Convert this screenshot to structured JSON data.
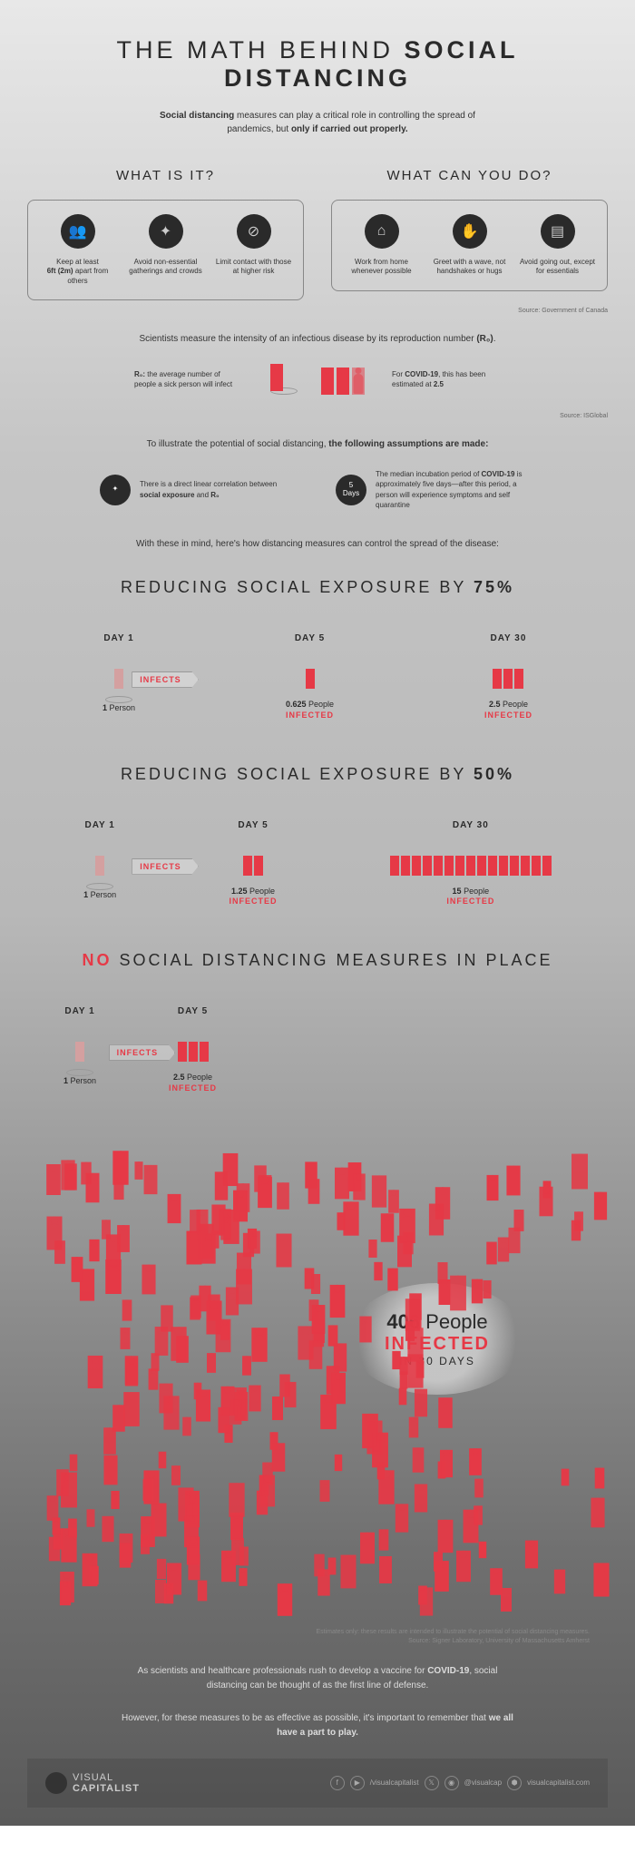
{
  "title_pre": "THE MATH BEHIND ",
  "title_bold": "SOCIAL DISTANCING",
  "subtitle_pre": "Social distancing",
  "subtitle_mid": " measures can play a critical role in controlling the spread of pandemics, but ",
  "subtitle_bold": "only if carried out properly.",
  "whatisit": {
    "heading": "WHAT IS IT?",
    "items": [
      {
        "icon": "👥",
        "text_pre": "Keep at least",
        "text_bold": "6ft (2m)",
        "text_post": " apart from others"
      },
      {
        "icon": "✦",
        "text_pre": "Avoid non-essential gatherings and crowds",
        "text_bold": "",
        "text_post": ""
      },
      {
        "icon": "⊘",
        "text_pre": "Limit contact with those at higher risk",
        "text_bold": "",
        "text_post": ""
      }
    ]
  },
  "whatcanyoudo": {
    "heading": "WHAT CAN YOU DO?",
    "items": [
      {
        "icon": "⌂",
        "text": "Work from home whenever possible"
      },
      {
        "icon": "✋",
        "text": "Greet with a wave, not handshakes or hugs"
      },
      {
        "icon": "▤",
        "text": "Avoid going out, except for essentials"
      }
    ]
  },
  "source1": "Source: Government of Canada",
  "r0_intro_pre": "Scientists measure the intensity of an infectious disease by its reproduction number ",
  "r0_intro_bold": "(R₀)",
  "r0_intro_post": ".",
  "r0_def_bold": "R₀:",
  "r0_def": " the average number of people a sick person will infect",
  "r0_covid_pre": "For ",
  "r0_covid_bold": "COVID-19",
  "r0_covid_mid": ", this has been estimated at ",
  "r0_covid_val": "2.5",
  "source2": "Source: ISGlobal",
  "assumptions_intro_pre": "To illustrate the potential of social distancing, ",
  "assumptions_intro_bold": "the following assumptions are made:",
  "assume1_pre": "There is a direct linear correlation between ",
  "assume1_b1": "social exposure",
  "assume1_mid": " and ",
  "assume1_b2": "R₀",
  "assume2_icon": "5\nDays",
  "assume2_pre": "The median incubation period of ",
  "assume2_b": "COVID-19",
  "assume2_post": " is approximately five days—after this period, a person will experience symptoms and self quarantine",
  "lead_in": "With these in mind, here's how distancing measures can control the spread of the disease:",
  "scenarios": [
    {
      "heading_pre": "REDUCING SOCIAL EXPOSURE BY ",
      "heading_bold": "75%",
      "days": [
        {
          "label": "DAY 1",
          "count_bold": "1",
          "count_text": " Person",
          "infected": "",
          "people": 1,
          "start": true
        },
        {
          "label": "DAY 5",
          "count_bold": "0.625",
          "count_text": " People",
          "infected": "INFECTED",
          "people": 1,
          "start": false
        },
        {
          "label": "DAY 30",
          "count_bold": "2.5",
          "count_text": " People",
          "infected": "INFECTED",
          "people": 3,
          "start": false
        }
      ]
    },
    {
      "heading_pre": "REDUCING SOCIAL EXPOSURE BY ",
      "heading_bold": "50%",
      "days": [
        {
          "label": "DAY 1",
          "count_bold": "1",
          "count_text": " Person",
          "infected": "",
          "people": 1,
          "start": true
        },
        {
          "label": "DAY 5",
          "count_bold": "1.25",
          "count_text": " People",
          "infected": "INFECTED",
          "people": 2,
          "start": false
        },
        {
          "label": "DAY 30",
          "count_bold": "15",
          "count_text": " People",
          "infected": "INFECTED",
          "people": 15,
          "start": false
        }
      ]
    }
  ],
  "no_measures": {
    "heading_no": "NO",
    "heading_rest": " SOCIAL DISTANCING MEASURES IN PLACE",
    "days": [
      {
        "label": "DAY 1",
        "count_bold": "1",
        "count_text": " Person",
        "infected": "",
        "people": 1,
        "start": true
      },
      {
        "label": "DAY 5",
        "count_bold": "2.5",
        "count_text": " People",
        "infected": "INFECTED",
        "people": 3,
        "start": false
      }
    ],
    "big_count": "406",
    "big_text": " People",
    "big_infected": "INFECTED",
    "big_days": "IN 30 DAYS",
    "crowd_count": 240
  },
  "infects_label": "INFECTS",
  "disclaimer": "Estimates only: these results are intended to illustrate the potential of social distancing measures.",
  "disclaimer_source": "Source: Signer Laboratory, University of Massachusetts Amherst",
  "closing1_pre": "As scientists and healthcare professionals rush to develop a vaccine for ",
  "closing1_b": "COVID-19",
  "closing1_post": ", social distancing can be thought of as the first line of defense.",
  "closing2_pre": "However, for these measures to be as effective as possible, it's important to remember that ",
  "closing2_b": "we all have a part to play.",
  "logo_top": "VISUAL",
  "logo_bottom": "CAPITALIST",
  "socials": {
    "handle1": "/visualcapitalist",
    "handle2": "@visualcap",
    "site": "visualcapitalist.com"
  },
  "colors": {
    "red": "#e63946",
    "dark": "#2a2a2a"
  }
}
